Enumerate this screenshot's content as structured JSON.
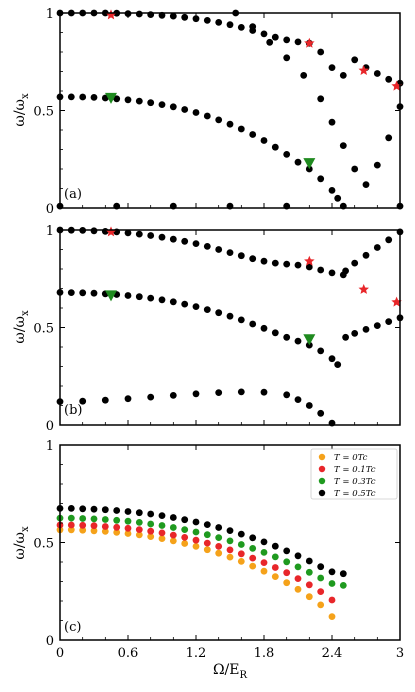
{
  "chart_data": [
    {
      "panel_label": "(a)",
      "type": "scatter",
      "xlim": [
        0,
        3
      ],
      "ylim": [
        0,
        1
      ],
      "ylabel": "ω/ωx",
      "yticks": [
        "0",
        "0.5",
        "1"
      ],
      "series": [
        {
          "x": [
            0,
            0.1,
            0.2,
            0.3,
            0.4,
            0.5,
            0.6,
            0.7,
            0.8,
            0.9,
            1.0,
            1.1,
            1.2,
            1.3,
            1.4,
            1.5,
            1.6,
            1.7,
            1.8,
            1.9,
            2.0,
            2.1,
            2.2,
            2.3,
            2.4,
            2.5,
            2.6,
            2.7,
            2.8,
            2.9,
            3.0
          ],
          "y": [
            1.0,
            1.0,
            1.0,
            1.0,
            1.0,
            0.999,
            0.997,
            0.995,
            0.992,
            0.988,
            0.984,
            0.978,
            0.971,
            0.962,
            0.952,
            0.94,
            0.926,
            0.91,
            0.893,
            0.876,
            0.862,
            0.852,
            0.845,
            0.8,
            0.72,
            0.68,
            0.76,
            0.72,
            0.69,
            0.66,
            0.64
          ]
        },
        {
          "x": [
            0,
            0.1,
            0.2,
            0.3,
            0.4,
            0.5,
            0.6,
            0.7,
            0.8,
            0.9,
            1.0,
            1.1,
            1.2,
            1.3,
            1.4,
            1.5,
            1.6,
            1.7,
            1.8,
            1.9,
            2.0,
            2.1,
            2.2,
            2.3,
            2.4,
            2.45
          ],
          "y": [
            0.57,
            0.57,
            0.569,
            0.567,
            0.564,
            0.56,
            0.555,
            0.548,
            0.54,
            0.53,
            0.519,
            0.505,
            0.49,
            0.472,
            0.452,
            0.43,
            0.405,
            0.377,
            0.346,
            0.312,
            0.275,
            0.235,
            0.2,
            0.15,
            0.09,
            0.05
          ]
        },
        {
          "x": [
            0,
            0.5,
            1.0,
            1.5,
            2.0,
            2.5,
            3.0
          ],
          "y": [
            0.01,
            0.01,
            0.01,
            0.01,
            0.01,
            0.01,
            0.01
          ]
        },
        {
          "x": [
            1.55,
            1.7,
            1.85,
            2.0,
            2.15,
            2.3,
            2.4,
            2.5,
            2.6,
            2.7,
            2.8,
            2.9,
            3.0
          ],
          "y": [
            1.0,
            0.93,
            0.85,
            0.77,
            0.68,
            0.56,
            0.44,
            0.32,
            0.2,
            0.12,
            0.22,
            0.36,
            0.52
          ]
        }
      ],
      "markers": {
        "stars": {
          "x": [
            0.45,
            2.2,
            2.68,
            2.97
          ],
          "y": [
            0.99,
            0.845,
            0.705,
            0.625
          ],
          "color": "#e8262a"
        },
        "triangles": {
          "x": [
            0.45,
            2.2
          ],
          "y": [
            0.565,
            0.23
          ],
          "color": "#1f8a1f"
        }
      }
    },
    {
      "panel_label": "(b)",
      "type": "scatter",
      "xlim": [
        0,
        3
      ],
      "ylim": [
        0,
        1
      ],
      "ylabel": "ω/ωx",
      "yticks": [
        "0",
        "0.5",
        "1"
      ],
      "series": [
        {
          "x": [
            0,
            0.1,
            0.2,
            0.3,
            0.4,
            0.5,
            0.6,
            0.7,
            0.8,
            0.9,
            1.0,
            1.1,
            1.2,
            1.3,
            1.4,
            1.5,
            1.6,
            1.7,
            1.8,
            1.9,
            2.0,
            2.1,
            2.2,
            2.3,
            2.4,
            2.5
          ],
          "y": [
            1.0,
            0.999,
            0.998,
            0.996,
            0.993,
            0.99,
            0.985,
            0.979,
            0.972,
            0.963,
            0.953,
            0.942,
            0.93,
            0.916,
            0.9,
            0.884,
            0.868,
            0.853,
            0.84,
            0.83,
            0.825,
            0.82,
            0.81,
            0.795,
            0.78,
            0.77
          ]
        },
        {
          "x": [
            0,
            0.1,
            0.2,
            0.3,
            0.4,
            0.5,
            0.6,
            0.7,
            0.8,
            0.9,
            1.0,
            1.1,
            1.2,
            1.3,
            1.4,
            1.5,
            1.6,
            1.7,
            1.8,
            1.9,
            2.0,
            2.1,
            2.2,
            2.3,
            2.4,
            2.45
          ],
          "y": [
            0.68,
            0.679,
            0.678,
            0.676,
            0.673,
            0.669,
            0.664,
            0.658,
            0.651,
            0.642,
            0.632,
            0.62,
            0.607,
            0.592,
            0.576,
            0.558,
            0.539,
            0.518,
            0.496,
            0.473,
            0.45,
            0.43,
            0.41,
            0.38,
            0.34,
            0.31
          ]
        },
        {
          "x": [
            0,
            0.2,
            0.4,
            0.6,
            0.8,
            1.0,
            1.2,
            1.4,
            1.6,
            1.8,
            2.0,
            2.1,
            2.2,
            2.3,
            2.4
          ],
          "y": [
            0.12,
            0.122,
            0.127,
            0.135,
            0.143,
            0.152,
            0.16,
            0.166,
            0.17,
            0.168,
            0.155,
            0.13,
            0.1,
            0.06,
            0.01
          ]
        },
        {
          "x": [
            2.52,
            2.6,
            2.7,
            2.8,
            2.9,
            3.0
          ],
          "y": [
            0.45,
            0.47,
            0.49,
            0.51,
            0.53,
            0.55
          ]
        },
        {
          "x": [
            2.52,
            2.6,
            2.7,
            2.8,
            2.9,
            3.0
          ],
          "y": [
            0.79,
            0.83,
            0.87,
            0.91,
            0.95,
            0.99
          ]
        }
      ],
      "markers": {
        "stars": {
          "x": [
            0.45,
            2.2,
            2.68,
            2.97
          ],
          "y": [
            0.99,
            0.84,
            0.695,
            0.63
          ],
          "color": "#e8262a"
        },
        "triangles": {
          "x": [
            0.45,
            2.2
          ],
          "y": [
            0.665,
            0.44
          ],
          "color": "#1f8a1f"
        }
      }
    },
    {
      "panel_label": "(c)",
      "type": "scatter",
      "xlim": [
        0,
        3
      ],
      "ylim": [
        0,
        1
      ],
      "xlabel": "Ω/ER",
      "ylabel": "ω/ωx",
      "xticks": [
        "0",
        "0.6",
        "1.2",
        "1.8",
        "2.4",
        "3"
      ],
      "yticks": [
        "0",
        "0.5",
        "1"
      ],
      "series": [
        {
          "name": "T = 0Tc",
          "color": "#f5a21a",
          "x": [
            0,
            0.1,
            0.2,
            0.3,
            0.4,
            0.5,
            0.6,
            0.7,
            0.8,
            0.9,
            1.0,
            1.1,
            1.2,
            1.3,
            1.4,
            1.5,
            1.6,
            1.7,
            1.8,
            1.9,
            2.0,
            2.1,
            2.2,
            2.3,
            2.4
          ],
          "y": [
            0.565,
            0.565,
            0.563,
            0.56,
            0.557,
            0.552,
            0.546,
            0.539,
            0.53,
            0.52,
            0.508,
            0.495,
            0.48,
            0.463,
            0.445,
            0.425,
            0.403,
            0.379,
            0.353,
            0.325,
            0.294,
            0.26,
            0.222,
            0.18,
            0.12
          ]
        },
        {
          "name": "T = 0.1Tc",
          "color": "#e8262a",
          "x": [
            0,
            0.1,
            0.2,
            0.3,
            0.4,
            0.5,
            0.6,
            0.7,
            0.8,
            0.9,
            1.0,
            1.1,
            1.2,
            1.3,
            1.4,
            1.5,
            1.6,
            1.7,
            1.8,
            1.9,
            2.0,
            2.1,
            2.2,
            2.3,
            2.4
          ],
          "y": [
            0.59,
            0.59,
            0.588,
            0.586,
            0.582,
            0.578,
            0.573,
            0.566,
            0.558,
            0.549,
            0.538,
            0.526,
            0.512,
            0.497,
            0.48,
            0.462,
            0.442,
            0.42,
            0.397,
            0.372,
            0.345,
            0.315,
            0.283,
            0.248,
            0.205
          ]
        },
        {
          "name": "T = 0.3Tc",
          "color": "#1f9a1f",
          "x": [
            0,
            0.1,
            0.2,
            0.3,
            0.4,
            0.5,
            0.6,
            0.7,
            0.8,
            0.9,
            1.0,
            1.1,
            1.2,
            1.3,
            1.4,
            1.5,
            1.6,
            1.7,
            1.8,
            1.9,
            2.0,
            2.1,
            2.2,
            2.3,
            2.4,
            2.5
          ],
          "y": [
            0.625,
            0.625,
            0.623,
            0.621,
            0.618,
            0.614,
            0.609,
            0.603,
            0.595,
            0.587,
            0.577,
            0.566,
            0.554,
            0.54,
            0.525,
            0.508,
            0.49,
            0.47,
            0.449,
            0.426,
            0.401,
            0.375,
            0.347,
            0.318,
            0.29,
            0.28
          ]
        },
        {
          "name": "T = 0.5Tc",
          "color": "#000000",
          "x": [
            0,
            0.1,
            0.2,
            0.3,
            0.4,
            0.5,
            0.6,
            0.7,
            0.8,
            0.9,
            1.0,
            1.1,
            1.2,
            1.3,
            1.4,
            1.5,
            1.6,
            1.7,
            1.8,
            1.9,
            2.0,
            2.1,
            2.2,
            2.3,
            2.4,
            2.5
          ],
          "y": [
            0.675,
            0.675,
            0.673,
            0.671,
            0.668,
            0.664,
            0.659,
            0.653,
            0.646,
            0.638,
            0.628,
            0.617,
            0.605,
            0.592,
            0.577,
            0.561,
            0.543,
            0.524,
            0.503,
            0.481,
            0.457,
            0.432,
            0.405,
            0.376,
            0.35,
            0.34
          ]
        }
      ],
      "legend_position": "top-right"
    }
  ]
}
